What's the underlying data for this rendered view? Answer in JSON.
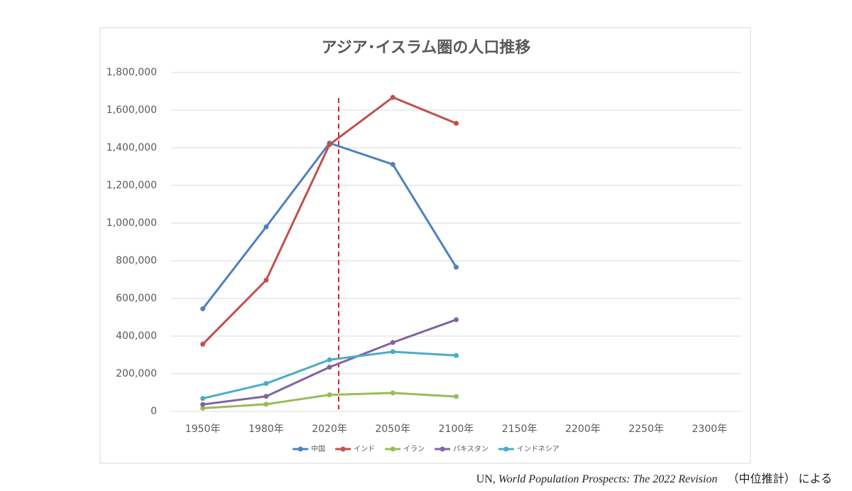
{
  "chart_data": {
    "type": "line",
    "title": "アジア･イスラム圏の人口推移",
    "categories": [
      "1950年",
      "1980年",
      "2020年",
      "2050年",
      "2100年",
      "2150年",
      "2200年",
      "2250年",
      "2300年"
    ],
    "series": [
      {
        "name": "中国",
        "color": "#4f81bd",
        "values": [
          545000,
          980000,
          1425000,
          1312000,
          766000,
          null,
          null,
          null,
          null
        ]
      },
      {
        "name": "インド",
        "color": "#c0504d",
        "values": [
          357000,
          697000,
          1417000,
          1668000,
          1530000,
          null,
          null,
          null,
          null
        ]
      },
      {
        "name": "イラン",
        "color": "#9bbb59",
        "values": [
          17000,
          38000,
          88000,
          98000,
          79000,
          null,
          null,
          null,
          null
        ]
      },
      {
        "name": "パキスタン",
        "color": "#8064a2",
        "values": [
          37000,
          80000,
          235000,
          366000,
          487000,
          null,
          null,
          null,
          null
        ]
      },
      {
        "name": "インドネシア",
        "color": "#4bacc6",
        "values": [
          69000,
          148000,
          274000,
          317000,
          297000,
          null,
          null,
          null,
          null
        ]
      }
    ],
    "ylim": [
      0,
      1800000
    ],
    "yticks": [
      0,
      {
        "value": 200000,
        "label": "200,000"
      },
      {
        "value": 400000,
        "label": "400,000"
      },
      {
        "value": 600000,
        "label": "600,000"
      },
      {
        "value": 800000,
        "label": "800,000"
      },
      {
        "value": 1000000,
        "label": "1,000,000"
      },
      {
        "value": 1200000,
        "label": "1,200,000"
      },
      {
        "value": 1400000,
        "label": "1,400,000"
      },
      {
        "value": 1600000,
        "label": "1,600,000"
      },
      {
        "value": 1800000,
        "label": "1,800,000"
      }
    ],
    "grid": true,
    "legend": "bottom",
    "source": {
      "prefix": "UN, ",
      "title": "World Population Prospects: The 2022 Revision",
      "suffix": "（中位推計） による"
    }
  }
}
